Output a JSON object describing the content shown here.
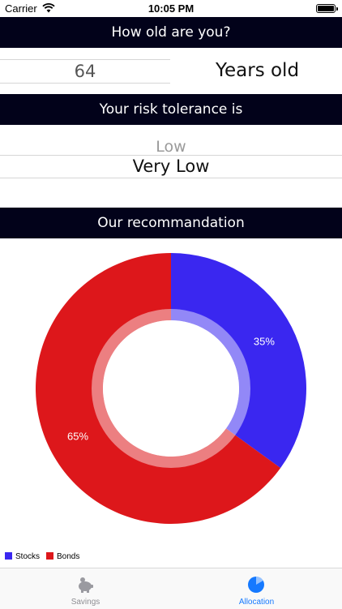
{
  "status_bar": {
    "carrier": "Carrier",
    "time": "10:05 PM"
  },
  "age_section": {
    "header": "How old are you?",
    "value": "64",
    "unit": "Years old"
  },
  "risk_section": {
    "header": "Your risk tolerance is",
    "option_above": "Low",
    "selected": "Very Low"
  },
  "recommendation_section": {
    "header": "Our recommandation"
  },
  "chart_data": {
    "type": "pie",
    "slices": [
      {
        "name": "Stocks",
        "value": 35,
        "label": "35%",
        "color": "#3a27f0"
      },
      {
        "name": "Bonds",
        "value": 65,
        "label": "65%",
        "color": "#dd171b"
      }
    ],
    "legend": [
      "Stocks",
      "Bonds"
    ],
    "legend_position": "bottom-left"
  },
  "tab_bar": {
    "tabs": [
      {
        "label": "Savings",
        "icon": "piggy-bank-icon",
        "active": false,
        "color": "#8e8e93"
      },
      {
        "label": "Allocation",
        "icon": "pie-chart-icon",
        "active": true,
        "color": "#1579ff"
      }
    ]
  }
}
